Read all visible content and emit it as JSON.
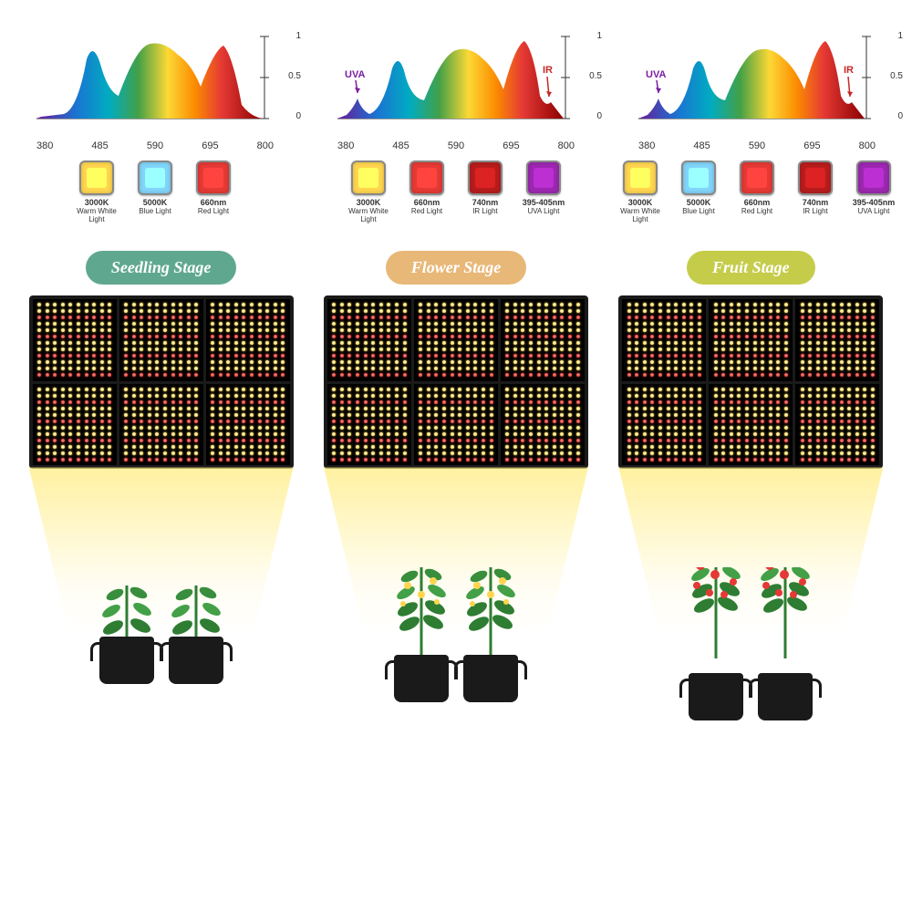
{
  "spectra": [
    {
      "xTicks": [
        "380",
        "485",
        "590",
        "695",
        "800"
      ],
      "yTicks": [
        "0",
        "0.5",
        "1"
      ],
      "hasUVA": false,
      "hasIR": false,
      "chips": [
        {
          "color": "#ffd54f",
          "label": "3000K",
          "sublabel": "Warm White Light"
        },
        {
          "color": "#81d4fa",
          "label": "5000K",
          "sublabel": "Blue Light"
        },
        {
          "color": "#e53935",
          "label": "660nm",
          "sublabel": "Red Light"
        }
      ]
    },
    {
      "xTicks": [
        "380",
        "485",
        "590",
        "695",
        "800"
      ],
      "yTicks": [
        "0",
        "0.5",
        "1"
      ],
      "hasUVA": true,
      "hasIR": true,
      "uvaLabel": "UVA",
      "irLabel": "IR",
      "chips": [
        {
          "color": "#ffd54f",
          "label": "3000K",
          "sublabel": "Warm White Light"
        },
        {
          "color": "#e53935",
          "label": "660nm",
          "sublabel": "Red Light"
        },
        {
          "color": "#b71c1c",
          "label": "740nm",
          "sublabel": "IR Light"
        },
        {
          "color": "#9c27b0",
          "label": "395-405nm",
          "sublabel": "UVA Light"
        }
      ]
    },
    {
      "xTicks": [
        "380",
        "485",
        "590",
        "695",
        "800"
      ],
      "yTicks": [
        "0",
        "0.5",
        "1"
      ],
      "hasUVA": true,
      "hasIR": true,
      "uvaLabel": "UVA",
      "irLabel": "IR",
      "chips": [
        {
          "color": "#ffd54f",
          "label": "3000K",
          "sublabel": "Warm White Light"
        },
        {
          "color": "#81d4fa",
          "label": "5000K",
          "sublabel": "Blue Light"
        },
        {
          "color": "#e53935",
          "label": "660nm",
          "sublabel": "Red Light"
        },
        {
          "color": "#b71c1c",
          "label": "740nm",
          "sublabel": "IR Light"
        },
        {
          "color": "#9c27b0",
          "label": "395-405nm",
          "sublabel": "UVA Light"
        }
      ]
    }
  ],
  "stages": [
    {
      "label": "Seedling Stage",
      "badgeColor": "#5fa88f",
      "plantHeight": 80,
      "hasFlowers": false,
      "hasFruits": false
    },
    {
      "label": "Flower Stage",
      "badgeColor": "#e8b878",
      "plantHeight": 100,
      "hasFlowers": true,
      "hasFruits": false
    },
    {
      "label": "Fruit Stage",
      "badgeColor": "#c5cc4a",
      "plantHeight": 120,
      "hasFlowers": false,
      "hasFruits": true
    }
  ],
  "spectrumColors": {
    "violet": "#6a1b9a",
    "blue": "#1976d2",
    "cyan": "#00acc1",
    "green": "#43a047",
    "yellow": "#fdd835",
    "orange": "#fb8c00",
    "red": "#e53935",
    "darkred": "#8b0000"
  },
  "ledPanel": {
    "rowsPerSection": 12,
    "dotsPerRow": 10,
    "redRowIndices": [
      2,
      5,
      8,
      11
    ]
  }
}
